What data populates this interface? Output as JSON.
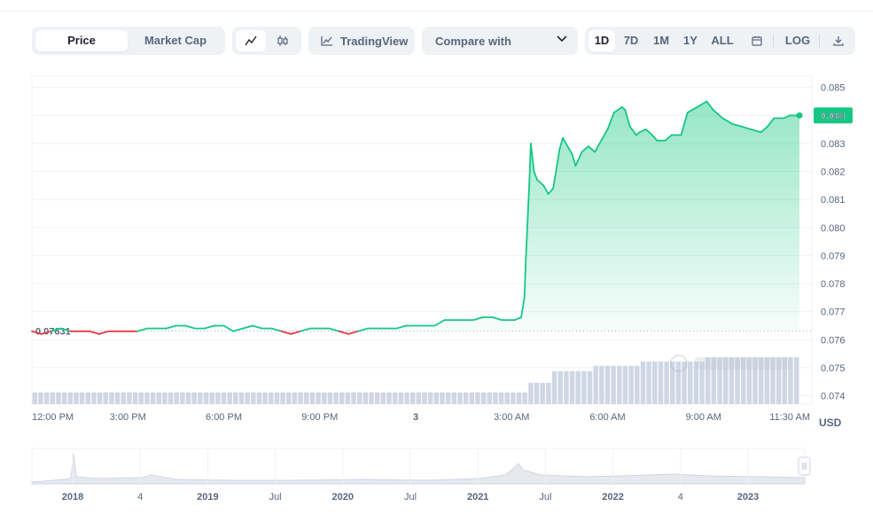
{
  "toolbar": {
    "view_tabs": [
      {
        "label": "Price",
        "active": true
      },
      {
        "label": "Market Cap",
        "active": false
      }
    ],
    "chart_style_icons": [
      "line-chart-icon",
      "candlestick-icon"
    ],
    "tradingview_label": "TradingView",
    "compare_label": "Compare with",
    "ranges": [
      {
        "label": "1D",
        "active": true
      },
      {
        "label": "7D",
        "active": false
      },
      {
        "label": "1M",
        "active": false
      },
      {
        "label": "1Y",
        "active": false
      },
      {
        "label": "ALL",
        "active": false
      }
    ],
    "log_label": "LOG"
  },
  "currency_unit": "USD",
  "colors": {
    "up": "#16c784",
    "down": "#ea3943",
    "volume": "#cfd6e4",
    "grid": "#eff2f5",
    "text": "#58667e"
  },
  "chart_data": {
    "type": "line",
    "title": "",
    "xlabel": "",
    "ylabel": "",
    "ylim": [
      0.0737,
      0.0854
    ],
    "y_ticks": [
      "0.085",
      "0.084",
      "0.083",
      "0.082",
      "0.081",
      "0.080",
      "0.079",
      "0.078",
      "0.077",
      "0.076",
      "0.075",
      "0.074"
    ],
    "x_tick_labels": [
      {
        "t": 0,
        "label": "12:00 PM",
        "bold": false
      },
      {
        "t": 3,
        "label": "3:00 PM",
        "bold": false
      },
      {
        "t": 6,
        "label": "6:00 PM",
        "bold": false
      },
      {
        "t": 9,
        "label": "9:00 PM",
        "bold": false
      },
      {
        "t": 12,
        "label": "3",
        "bold": true
      },
      {
        "t": 15,
        "label": "3:00 AM",
        "bold": false
      },
      {
        "t": 18,
        "label": "6:00 AM",
        "bold": false
      },
      {
        "t": 21,
        "label": "9:00 AM",
        "bold": false
      },
      {
        "t": 23.5,
        "label": "11:30 AM",
        "bold": false
      }
    ],
    "x_range_hours": [
      0,
      24
    ],
    "reference_price": 0.07631,
    "reference_label": "0.07631",
    "current_price": 0.084,
    "current_label": "0.084",
    "grid": true,
    "series": [
      {
        "points": [
          [
            0.0,
            0.0763
          ],
          [
            0.3,
            0.0762
          ],
          [
            0.6,
            0.0763
          ],
          [
            0.9,
            0.0764
          ],
          [
            1.2,
            0.0763
          ],
          [
            1.5,
            0.0763
          ],
          [
            1.8,
            0.0763
          ],
          [
            2.1,
            0.0762
          ],
          [
            2.4,
            0.0763
          ],
          [
            2.7,
            0.0763
          ],
          [
            3.0,
            0.0763
          ],
          [
            3.3,
            0.0763
          ],
          [
            3.6,
            0.0764
          ],
          [
            3.9,
            0.0764
          ],
          [
            4.2,
            0.0764
          ],
          [
            4.5,
            0.0765
          ],
          [
            4.8,
            0.0765
          ],
          [
            5.1,
            0.0764
          ],
          [
            5.4,
            0.0764
          ],
          [
            5.7,
            0.0765
          ],
          [
            6.0,
            0.0765
          ],
          [
            6.3,
            0.0763
          ],
          [
            6.6,
            0.0764
          ],
          [
            6.9,
            0.0765
          ],
          [
            7.2,
            0.0764
          ],
          [
            7.5,
            0.0764
          ],
          [
            7.8,
            0.0763
          ],
          [
            8.1,
            0.0762
          ],
          [
            8.4,
            0.0763
          ],
          [
            8.7,
            0.0764
          ],
          [
            9.0,
            0.0764
          ],
          [
            9.3,
            0.0764
          ],
          [
            9.6,
            0.0763
          ],
          [
            9.9,
            0.0762
          ],
          [
            10.2,
            0.0763
          ],
          [
            10.5,
            0.0764
          ],
          [
            10.8,
            0.0764
          ],
          [
            11.1,
            0.0764
          ],
          [
            11.4,
            0.0764
          ],
          [
            11.7,
            0.0765
          ],
          [
            12.0,
            0.0765
          ],
          [
            12.3,
            0.0765
          ],
          [
            12.6,
            0.0765
          ],
          [
            12.9,
            0.0767
          ],
          [
            13.2,
            0.0767
          ],
          [
            13.5,
            0.0767
          ],
          [
            13.8,
            0.0767
          ],
          [
            14.1,
            0.0768
          ],
          [
            14.4,
            0.0768
          ],
          [
            14.7,
            0.0767
          ],
          [
            15.0,
            0.0767
          ],
          [
            15.1,
            0.0767
          ],
          [
            15.3,
            0.0768
          ],
          [
            15.4,
            0.0775
          ],
          [
            15.45,
            0.079
          ],
          [
            15.55,
            0.0815
          ],
          [
            15.6,
            0.083
          ],
          [
            15.7,
            0.082
          ],
          [
            15.8,
            0.0817
          ],
          [
            16.0,
            0.0815
          ],
          [
            16.15,
            0.0812
          ],
          [
            16.3,
            0.0814
          ],
          [
            16.5,
            0.0828
          ],
          [
            16.6,
            0.0832
          ],
          [
            16.9,
            0.0826
          ],
          [
            17.0,
            0.0822
          ],
          [
            17.2,
            0.0827
          ],
          [
            17.4,
            0.0829
          ],
          [
            17.6,
            0.0827
          ],
          [
            17.8,
            0.0831
          ],
          [
            18.0,
            0.0835
          ],
          [
            18.2,
            0.0841
          ],
          [
            18.45,
            0.0843
          ],
          [
            18.55,
            0.0842
          ],
          [
            18.7,
            0.0836
          ],
          [
            18.9,
            0.0833
          ],
          [
            19.0,
            0.0834
          ],
          [
            19.2,
            0.0835
          ],
          [
            19.4,
            0.0833
          ],
          [
            19.55,
            0.0831
          ],
          [
            19.8,
            0.0831
          ],
          [
            20.0,
            0.0833
          ],
          [
            20.3,
            0.0833
          ],
          [
            20.5,
            0.0841
          ],
          [
            20.8,
            0.0843
          ],
          [
            21.1,
            0.0845
          ],
          [
            21.3,
            0.0842
          ],
          [
            21.6,
            0.0839
          ],
          [
            21.9,
            0.0837
          ],
          [
            22.2,
            0.0836
          ],
          [
            22.5,
            0.0835
          ],
          [
            22.8,
            0.0834
          ],
          [
            23.0,
            0.0836
          ],
          [
            23.2,
            0.0839
          ],
          [
            23.5,
            0.0839
          ],
          [
            23.7,
            0.084
          ],
          [
            24.0,
            0.084
          ]
        ]
      }
    ],
    "volume": {
      "bars": 130,
      "levels": [
        {
          "from": 0.0,
          "to": 15.5,
          "value": 0.22
        },
        {
          "from": 15.5,
          "to": 16.2,
          "value": 0.4
        },
        {
          "from": 16.2,
          "to": 17.5,
          "value": 0.62
        },
        {
          "from": 17.5,
          "to": 19.0,
          "value": 0.72
        },
        {
          "from": 19.0,
          "to": 21.0,
          "value": 0.8
        },
        {
          "from": 21.0,
          "to": 24.0,
          "value": 0.88
        }
      ]
    }
  },
  "navigator": {
    "labels": [
      {
        "label": "2018",
        "bold": true
      },
      {
        "label": "4",
        "bold": false
      },
      {
        "label": "2019",
        "bold": true
      },
      {
        "label": "Jul",
        "bold": false
      },
      {
        "label": "2020",
        "bold": true
      },
      {
        "label": "Jul",
        "bold": false
      },
      {
        "label": "2021",
        "bold": true
      },
      {
        "label": "Jul",
        "bold": false
      },
      {
        "label": "2022",
        "bold": true
      },
      {
        "label": "4",
        "bold": false
      },
      {
        "label": "2023",
        "bold": true
      }
    ]
  }
}
